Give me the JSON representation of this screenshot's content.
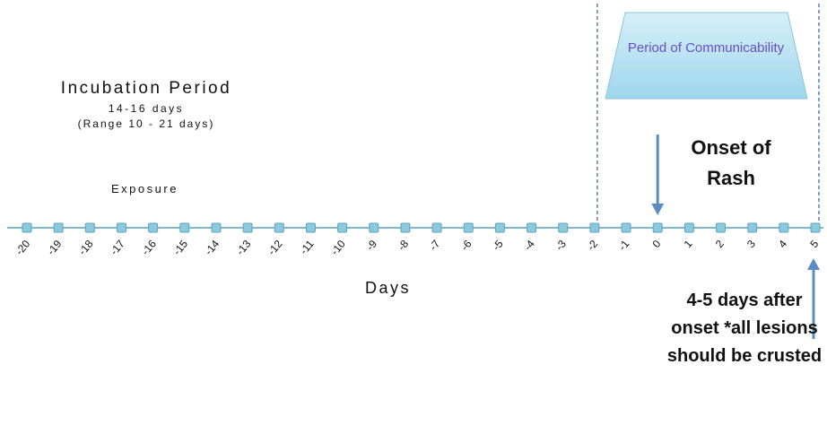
{
  "incubation": {
    "title": "Incubation Period",
    "days": "14-16 days",
    "range": "(Range 10 - 21 days)"
  },
  "exposure_label": "Exposure",
  "axis_title": "Days",
  "onset_label": "Onset of Rash",
  "after_onset_label": "4-5 days after onset *all lesions should be crusted",
  "communicability_label": "Period of Communicability",
  "colors": {
    "marker": "#8dc9dd",
    "marker_border": "#5aa6c4",
    "axis_line": "#7fb8cc",
    "arrow": "#5b8dc4",
    "dashed_line": "#5a7fb5",
    "trapezoid_fill_top": "#d6eff8",
    "trapezoid_fill_bottom": "#9fd6ec",
    "period_text": "#6a4fc4"
  },
  "timeline": {
    "ticks": [
      -20,
      -19,
      -18,
      -17,
      -16,
      -15,
      -14,
      -13,
      -12,
      -11,
      -10,
      -9,
      -8,
      -7,
      -6,
      -5,
      -4,
      -3,
      -2,
      -1,
      0,
      1,
      2,
      3,
      4,
      5
    ],
    "communicability_start": -2,
    "communicability_end": 5,
    "onset_day": 0,
    "end_day": 5
  }
}
